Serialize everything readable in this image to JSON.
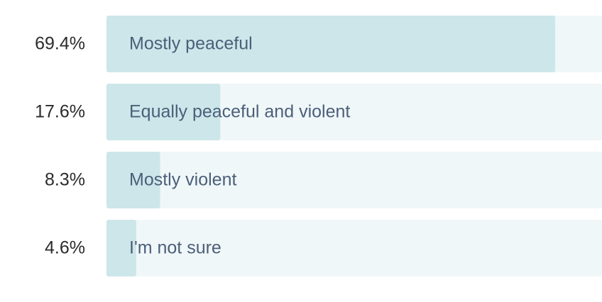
{
  "chart_data": {
    "type": "bar",
    "orientation": "horizontal",
    "categories": [
      "Mostly peaceful",
      "Equally peaceful and violent",
      "Mostly violent",
      "I'm not sure"
    ],
    "values": [
      69.4,
      17.6,
      8.3,
      4.6
    ],
    "value_labels": [
      "69.4%",
      "17.6%",
      "8.3%",
      "4.6%"
    ],
    "color": "#cde6ea"
  }
}
